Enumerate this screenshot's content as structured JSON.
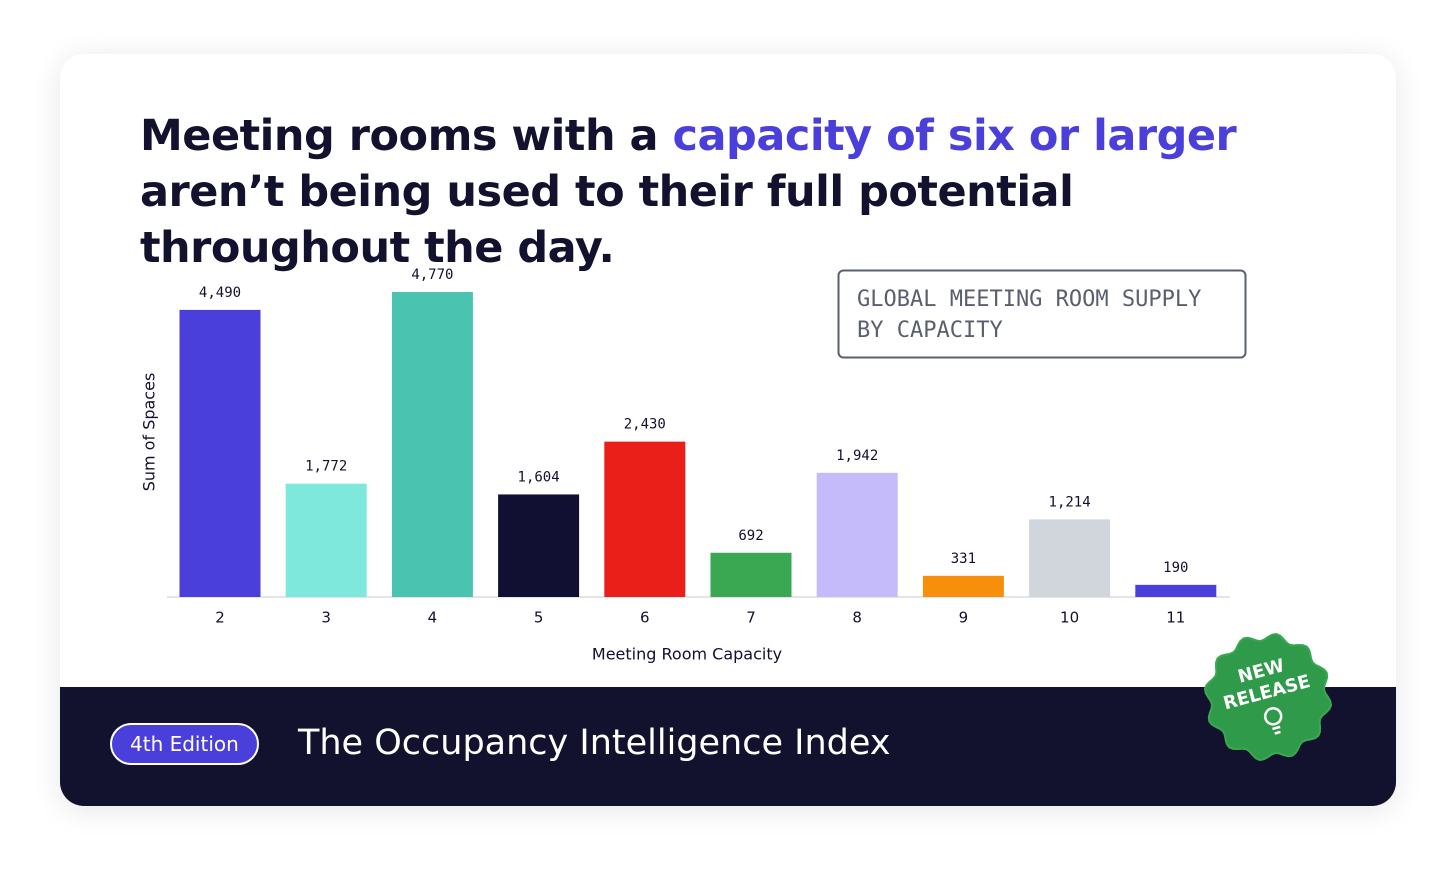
{
  "header": {
    "title_parts": [
      "Meeting rooms with a",
      "capacity of six or larger",
      "aren’t being used to their full potential throughout the day."
    ]
  },
  "chart_data": {
    "type": "bar",
    "subtitle_lines": [
      "GLOBAL MEETING ROOM SUPPLY",
      "BY CAPACITY"
    ],
    "x_label": "Meeting Room Capacity",
    "y_label": "Sum of Spaces",
    "categories": [
      "2",
      "3",
      "4",
      "5",
      "6",
      "7",
      "8",
      "9",
      "10",
      "11"
    ],
    "values": [
      4490,
      1772,
      4770,
      1604,
      2430,
      692,
      1942,
      331,
      1214,
      190
    ],
    "value_labels": [
      "4,490",
      "1,772",
      "4,770",
      "1,604",
      "2,430",
      "692",
      "1,942",
      "331",
      "1,214",
      "190"
    ],
    "colors": [
      "#4b3fdb",
      "#7ee8dc",
      "#4ac3b0",
      "#111032",
      "#ea1f1a",
      "#3aa853",
      "#c5bbfb",
      "#f88f0c",
      "#d1d5dc",
      "#4b3fdb"
    ]
  },
  "footer": {
    "edition": "4th Edition",
    "title": "The Occupancy Intelligence Index",
    "badge_lines": [
      "NEW",
      "RELEASE"
    ]
  }
}
